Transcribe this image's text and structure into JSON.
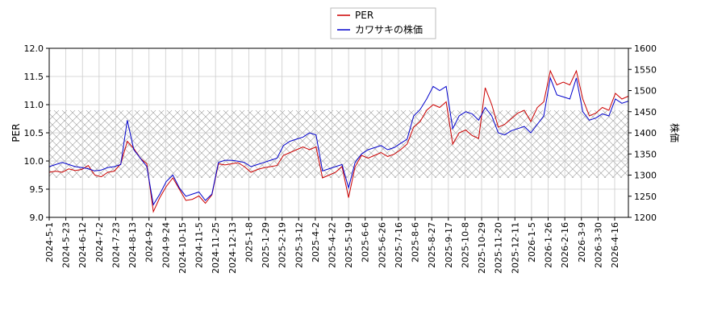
{
  "chart_data": {
    "type": "line",
    "title": "",
    "x_tick_labels": [
      "2024-5-1",
      "2024-5-23",
      "2024-6-12",
      "2024-7-2",
      "2024-7-23",
      "2024-8-13",
      "2024-9-2",
      "2024-9-24",
      "2024-10-15",
      "2024-11-5",
      "2024-11-25",
      "2024-12-13",
      "2025-1-8",
      "2025-1-29",
      "2025-2-19",
      "2025-3-12",
      "2025-4-2",
      "2025-4-22",
      "2025-5-19",
      "2025-6-6",
      "2025-6-26",
      "2025-7-16",
      "2025-8-6",
      "2025-8-27",
      "2025-9-17",
      "2025-10-8",
      "2025-10-29",
      "2025-11-20",
      "2025-12-11",
      "2026-1-5",
      "2026-1-26",
      "2026-2-16",
      "2026-3-9",
      "2026-3-30",
      "2026-4-16"
    ],
    "y_left": {
      "label": "PER",
      "min": 9.0,
      "max": 12.0,
      "ticks": [
        "9.0",
        "9.5",
        "10.0",
        "10.5",
        "11.0",
        "11.5",
        "12.0"
      ]
    },
    "y_right": {
      "label": "株価",
      "min": 1200,
      "max": 1600,
      "ticks": [
        "1200",
        "1250",
        "1300",
        "1350",
        "1400",
        "1450",
        "1500",
        "1550",
        "1600"
      ]
    },
    "shaded_band": {
      "axis": "left",
      "from": 9.7,
      "to": 10.9,
      "pattern": "crosshatch"
    },
    "grid": true,
    "legend_position": "top-center",
    "series": [
      {
        "name": "PER",
        "axis": "left",
        "color": "#cc0000",
        "values": [
          9.8,
          9.82,
          9.8,
          9.86,
          9.83,
          9.85,
          9.92,
          9.75,
          9.72,
          9.8,
          9.82,
          9.95,
          10.35,
          10.22,
          10.05,
          9.95,
          9.1,
          9.35,
          9.55,
          9.7,
          9.5,
          9.3,
          9.32,
          9.38,
          9.25,
          9.4,
          9.95,
          9.93,
          9.95,
          9.97,
          9.9,
          9.8,
          9.85,
          9.88,
          9.9,
          9.92,
          10.1,
          10.15,
          10.2,
          10.25,
          10.2,
          10.25,
          9.7,
          9.75,
          9.8,
          9.9,
          9.35,
          9.9,
          10.1,
          10.05,
          10.1,
          10.15,
          10.08,
          10.12,
          10.2,
          10.3,
          10.6,
          10.7,
          10.9,
          11.0,
          10.95,
          11.05,
          10.3,
          10.5,
          10.55,
          10.45,
          10.4,
          11.3,
          11.0,
          10.6,
          10.65,
          10.75,
          10.85,
          10.9,
          10.7,
          10.95,
          11.05,
          11.6,
          11.35,
          11.4,
          11.35,
          11.6,
          11.1,
          10.8,
          10.85,
          10.95,
          10.9,
          11.2,
          11.1,
          11.15
        ]
      },
      {
        "name": "カワサキの株価",
        "axis": "right",
        "color": "#0000cc",
        "values": [
          1320,
          1325,
          1330,
          1325,
          1320,
          1318,
          1315,
          1310,
          1312,
          1318,
          1320,
          1325,
          1430,
          1360,
          1340,
          1320,
          1230,
          1255,
          1285,
          1300,
          1270,
          1250,
          1255,
          1260,
          1240,
          1255,
          1330,
          1335,
          1335,
          1333,
          1330,
          1320,
          1325,
          1330,
          1335,
          1340,
          1370,
          1380,
          1385,
          1390,
          1400,
          1395,
          1310,
          1315,
          1320,
          1325,
          1270,
          1330,
          1350,
          1360,
          1365,
          1370,
          1360,
          1365,
          1375,
          1385,
          1440,
          1455,
          1480,
          1510,
          1500,
          1510,
          1410,
          1440,
          1450,
          1445,
          1430,
          1460,
          1440,
          1400,
          1395,
          1405,
          1410,
          1415,
          1400,
          1420,
          1440,
          1530,
          1490,
          1485,
          1480,
          1530,
          1450,
          1430,
          1435,
          1445,
          1440,
          1480,
          1470,
          1475
        ]
      }
    ]
  }
}
